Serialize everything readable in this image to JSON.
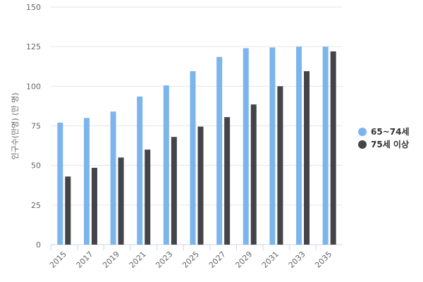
{
  "chart_data": {
    "type": "bar",
    "y_label": "인구수(만명) (만 명)",
    "categories": [
      "2015",
      "2017",
      "2019",
      "2021",
      "2023",
      "2025",
      "2027",
      "2029",
      "2031",
      "2033",
      "2035"
    ],
    "series": [
      {
        "name": "65~74세",
        "color": "#7cb5ec",
        "values": [
          77,
          80,
          84,
          93.5,
          100.5,
          109.5,
          118.5,
          124,
          124.5,
          125,
          125
        ]
      },
      {
        "name": "75세 이상",
        "color": "#434348",
        "values": [
          43,
          48.5,
          55,
          60,
          68,
          74.5,
          80.5,
          88.5,
          100,
          109.5,
          122
        ]
      }
    ],
    "ylim": [
      0,
      150
    ],
    "yticks": [
      0,
      25,
      50,
      75,
      100,
      125,
      150
    ],
    "grid": true,
    "legend": "right"
  }
}
